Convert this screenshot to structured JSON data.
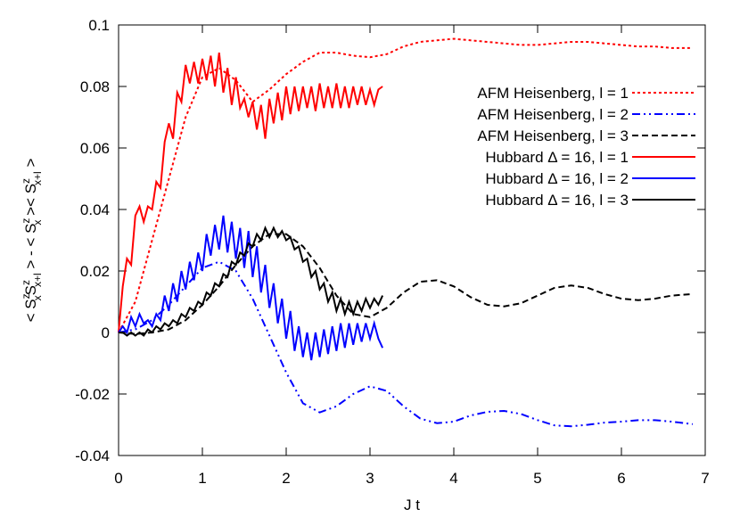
{
  "chart_data": {
    "type": "line",
    "xlabel": "J t",
    "ylabel": [
      "< S",
      "z",
      "x",
      "S",
      "z",
      "x+l",
      " > - < S",
      "z",
      "x",
      " >< S",
      "z",
      "x+l",
      " >"
    ],
    "xlim": [
      0,
      7
    ],
    "xticks": [
      0,
      1,
      2,
      3,
      4,
      5,
      6,
      7
    ],
    "ylim": [
      -0.04,
      0.1
    ],
    "yticks": [
      0.1,
      0.08,
      0.06,
      0.04,
      0.02,
      0,
      -0.02,
      -0.04
    ],
    "legend": "upper right",
    "series": [
      {
        "name": "AFM Heisenberg, l = 1",
        "color": "#ff0000",
        "style": "dotted",
        "x": [
          0,
          0.2,
          0.4,
          0.6,
          0.8,
          1.0,
          1.2,
          1.4,
          1.6,
          1.8,
          2.0,
          2.2,
          2.4,
          2.6,
          2.8,
          3.0,
          3.2,
          3.4,
          3.6,
          3.8,
          4.0,
          4.2,
          4.4,
          4.6,
          4.8,
          5.0,
          5.2,
          5.4,
          5.6,
          5.8,
          6.0,
          6.2,
          6.4,
          6.6,
          6.85
        ],
        "values": [
          0,
          0.01,
          0.03,
          0.05,
          0.07,
          0.083,
          0.086,
          0.082,
          0.075,
          0.079,
          0.084,
          0.088,
          0.091,
          0.091,
          0.09,
          0.0895,
          0.0905,
          0.093,
          0.0945,
          0.095,
          0.0955,
          0.095,
          0.0945,
          0.094,
          0.0935,
          0.0935,
          0.094,
          0.0945,
          0.0945,
          0.094,
          0.0935,
          0.093,
          0.093,
          0.0925,
          0.0925
        ]
      },
      {
        "name": "AFM Heisenberg, l = 2",
        "color": "#0000ff",
        "style": "dashdot",
        "x": [
          0,
          0.2,
          0.4,
          0.6,
          0.8,
          1.0,
          1.2,
          1.4,
          1.6,
          1.8,
          2.0,
          2.2,
          2.4,
          2.6,
          2.8,
          3.0,
          3.2,
          3.4,
          3.6,
          3.8,
          4.0,
          4.2,
          4.4,
          4.6,
          4.8,
          5.0,
          5.2,
          5.4,
          5.6,
          5.8,
          6.0,
          6.2,
          6.4,
          6.6,
          6.85
        ],
        "values": [
          0,
          0.001,
          0.004,
          0.009,
          0.015,
          0.021,
          0.023,
          0.02,
          0.011,
          -0.001,
          -0.013,
          -0.023,
          -0.026,
          -0.024,
          -0.02,
          -0.0175,
          -0.019,
          -0.024,
          -0.028,
          -0.0295,
          -0.029,
          -0.027,
          -0.0258,
          -0.0255,
          -0.0265,
          -0.0285,
          -0.0302,
          -0.0305,
          -0.03,
          -0.0293,
          -0.029,
          -0.0285,
          -0.0285,
          -0.029,
          -0.0298
        ]
      },
      {
        "name": "AFM Heisenberg, l = 3",
        "color": "#000000",
        "style": "dashed",
        "x": [
          0,
          0.2,
          0.4,
          0.6,
          0.8,
          1.0,
          1.2,
          1.4,
          1.6,
          1.8,
          2.0,
          2.2,
          2.4,
          2.6,
          2.8,
          3.0,
          3.2,
          3.4,
          3.6,
          3.8,
          4.0,
          4.2,
          4.4,
          4.6,
          4.8,
          5.0,
          5.2,
          5.4,
          5.6,
          5.8,
          6.0,
          6.2,
          6.4,
          6.6,
          6.85
        ],
        "values": [
          0,
          -0.0005,
          0,
          0.001,
          0.004,
          0.009,
          0.015,
          0.022,
          0.028,
          0.032,
          0.032,
          0.028,
          0.021,
          0.012,
          0.006,
          0.005,
          0.008,
          0.013,
          0.0165,
          0.017,
          0.015,
          0.0115,
          0.009,
          0.0085,
          0.0095,
          0.012,
          0.0145,
          0.0153,
          0.0145,
          0.0125,
          0.011,
          0.0105,
          0.011,
          0.012,
          0.0125
        ]
      },
      {
        "name": "Hubbard Δ = 16, l = 1",
        "color": "#ff0000",
        "style": "solid",
        "x": [
          0,
          0.05,
          0.1,
          0.15,
          0.2,
          0.25,
          0.3,
          0.35,
          0.4,
          0.45,
          0.5,
          0.55,
          0.6,
          0.65,
          0.7,
          0.75,
          0.8,
          0.85,
          0.9,
          0.95,
          1.0,
          1.05,
          1.1,
          1.15,
          1.2,
          1.25,
          1.3,
          1.35,
          1.4,
          1.45,
          1.5,
          1.55,
          1.6,
          1.65,
          1.7,
          1.75,
          1.8,
          1.85,
          1.9,
          1.95,
          2.0,
          2.05,
          2.1,
          2.15,
          2.2,
          2.25,
          2.3,
          2.35,
          2.4,
          2.45,
          2.5,
          2.55,
          2.6,
          2.65,
          2.7,
          2.75,
          2.8,
          2.85,
          2.9,
          2.95,
          3.0,
          3.05,
          3.1,
          3.15
        ],
        "values": [
          0,
          0.015,
          0.024,
          0.022,
          0.038,
          0.041,
          0.036,
          0.041,
          0.04,
          0.049,
          0.047,
          0.062,
          0.068,
          0.063,
          0.078,
          0.075,
          0.087,
          0.081,
          0.088,
          0.081,
          0.089,
          0.082,
          0.09,
          0.08,
          0.091,
          0.078,
          0.086,
          0.074,
          0.083,
          0.073,
          0.076,
          0.07,
          0.075,
          0.066,
          0.074,
          0.063,
          0.076,
          0.068,
          0.078,
          0.069,
          0.08,
          0.071,
          0.08,
          0.072,
          0.08,
          0.073,
          0.08,
          0.072,
          0.081,
          0.073,
          0.08,
          0.073,
          0.081,
          0.073,
          0.08,
          0.073,
          0.08,
          0.074,
          0.08,
          0.074,
          0.079,
          0.074,
          0.079,
          0.08
        ]
      },
      {
        "name": "Hubbard Δ = 16, l = 2",
        "color": "#0000ff",
        "style": "solid",
        "x": [
          0,
          0.05,
          0.1,
          0.15,
          0.2,
          0.25,
          0.3,
          0.35,
          0.4,
          0.45,
          0.5,
          0.55,
          0.6,
          0.65,
          0.7,
          0.75,
          0.8,
          0.85,
          0.9,
          0.95,
          1.0,
          1.05,
          1.1,
          1.15,
          1.2,
          1.25,
          1.3,
          1.35,
          1.4,
          1.45,
          1.5,
          1.55,
          1.6,
          1.65,
          1.7,
          1.75,
          1.8,
          1.85,
          1.9,
          1.95,
          2.0,
          2.05,
          2.1,
          2.15,
          2.2,
          2.25,
          2.3,
          2.35,
          2.4,
          2.45,
          2.5,
          2.55,
          2.6,
          2.65,
          2.7,
          2.75,
          2.8,
          2.85,
          2.9,
          2.95,
          3.0,
          3.05,
          3.1,
          3.15
        ],
        "values": [
          0,
          0.002,
          0,
          0.005,
          0.002,
          0.006,
          0.003,
          0.004,
          0.002,
          0.006,
          0.004,
          0.012,
          0.007,
          0.016,
          0.01,
          0.02,
          0.014,
          0.023,
          0.017,
          0.026,
          0.02,
          0.032,
          0.025,
          0.035,
          0.027,
          0.038,
          0.026,
          0.036,
          0.024,
          0.034,
          0.021,
          0.033,
          0.018,
          0.028,
          0.013,
          0.022,
          0.008,
          0.016,
          0.003,
          0.011,
          -0.002,
          0.007,
          -0.006,
          0.002,
          -0.008,
          0,
          -0.009,
          0,
          -0.008,
          0.001,
          -0.007,
          0.002,
          -0.006,
          0.003,
          -0.005,
          0.003,
          -0.004,
          0.003,
          -0.003,
          0.003,
          -0.002,
          0.003,
          -0.002,
          -0.005
        ]
      },
      {
        "name": "Hubbard Δ = 16, l = 3",
        "color": "#000000",
        "style": "solid",
        "x": [
          0,
          0.05,
          0.1,
          0.15,
          0.2,
          0.25,
          0.3,
          0.35,
          0.4,
          0.45,
          0.5,
          0.55,
          0.6,
          0.65,
          0.7,
          0.75,
          0.8,
          0.85,
          0.9,
          0.95,
          1.0,
          1.05,
          1.1,
          1.15,
          1.2,
          1.25,
          1.3,
          1.35,
          1.4,
          1.45,
          1.5,
          1.55,
          1.6,
          1.65,
          1.7,
          1.75,
          1.8,
          1.85,
          1.9,
          1.95,
          2.0,
          2.05,
          2.1,
          2.15,
          2.2,
          2.25,
          2.3,
          2.35,
          2.4,
          2.45,
          2.5,
          2.55,
          2.6,
          2.65,
          2.7,
          2.75,
          2.8,
          2.85,
          2.9,
          2.95,
          3.0,
          3.05,
          3.1,
          3.15
        ],
        "values": [
          0,
          0,
          -0.001,
          0,
          -0.001,
          0,
          -0.001,
          0.001,
          0,
          0.002,
          0.001,
          0.003,
          0.002,
          0.004,
          0.003,
          0.006,
          0.005,
          0.008,
          0.007,
          0.01,
          0.009,
          0.013,
          0.012,
          0.016,
          0.015,
          0.019,
          0.018,
          0.023,
          0.022,
          0.026,
          0.025,
          0.029,
          0.028,
          0.032,
          0.03,
          0.034,
          0.031,
          0.034,
          0.031,
          0.033,
          0.03,
          0.031,
          0.027,
          0.028,
          0.023,
          0.024,
          0.018,
          0.02,
          0.014,
          0.016,
          0.01,
          0.013,
          0.007,
          0.011,
          0.006,
          0.01,
          0.006,
          0.01,
          0.007,
          0.011,
          0.008,
          0.011,
          0.009,
          0.012
        ]
      }
    ]
  }
}
